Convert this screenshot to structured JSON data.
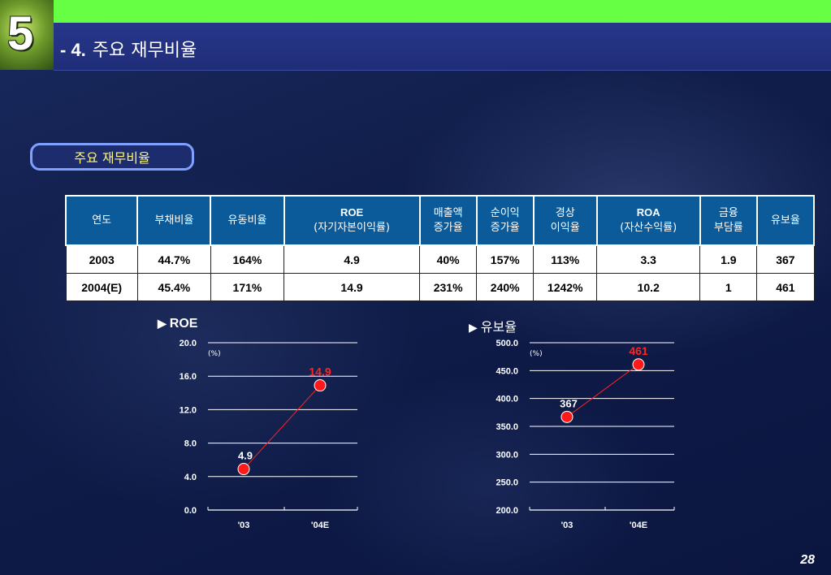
{
  "header": {
    "section_number": "5",
    "title_prefix": "- 4.",
    "title": "주요 재무비율"
  },
  "pill_label": "주요 재무비율",
  "table": {
    "headers": [
      [
        "연도"
      ],
      [
        "부채비율"
      ],
      [
        "유동비율"
      ],
      [
        "ROE",
        "(자기자본이익률)"
      ],
      [
        "매출액",
        "증가율"
      ],
      [
        "순이익",
        "증가율"
      ],
      [
        "경상",
        "이익율"
      ],
      [
        "ROA",
        "(자산수익률)"
      ],
      [
        "금융",
        "부담률"
      ],
      [
        "유보율"
      ]
    ],
    "rows": [
      [
        "2003",
        "44.7%",
        "164%",
        "4.9",
        "40%",
        "157%",
        "113%",
        "3.3",
        "1.9",
        "367"
      ],
      [
        "2004(E)",
        "45.4%",
        "171%",
        "14.9",
        "231%",
        "240%",
        "1242%",
        "10.2",
        "1",
        "461"
      ]
    ]
  },
  "chart_data": [
    {
      "type": "line",
      "title": "ROE",
      "unit_label": "(%)",
      "categories": [
        "'03",
        "'04E"
      ],
      "values": [
        4.9,
        14.9
      ],
      "value_labels": [
        "4.9",
        "14.9"
      ],
      "ylim": [
        0,
        20
      ],
      "yticks": [
        "0.0",
        "4.0",
        "8.0",
        "12.0",
        "16.0",
        "20.0"
      ],
      "grid": true,
      "colors": {
        "line": "#ff2222",
        "marker": "#ff1a1a",
        "highlight_label": "#ff2222",
        "label": "#ffffff"
      }
    },
    {
      "type": "line",
      "title": "유보율",
      "unit_label": "(%)",
      "categories": [
        "'03",
        "'04E"
      ],
      "values": [
        367,
        461
      ],
      "value_labels": [
        "367",
        "461"
      ],
      "ylim": [
        200,
        500
      ],
      "yticks": [
        "200.0",
        "250.0",
        "300.0",
        "350.0",
        "400.0",
        "450.0",
        "500.0"
      ],
      "grid": true,
      "colors": {
        "line": "#ff2222",
        "marker": "#ff1a1a",
        "highlight_label": "#ff2222",
        "label": "#ffffff"
      }
    }
  ],
  "page_number": "28"
}
